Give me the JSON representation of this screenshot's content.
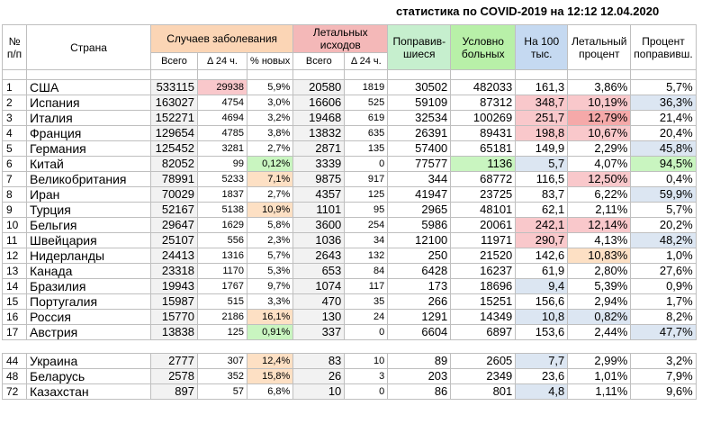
{
  "title": "статистика по COVID-2019 на 12:12 12.04.2020",
  "headers": {
    "no": "№ п/п",
    "country": "Страна",
    "cases": "Случаев заболевания",
    "deaths": "Летальных исходов",
    "recovered": "Поправив-шиеся",
    "active": "Условно больных",
    "per100k": "На 100 тыс.",
    "lethal_pct": "Летальный процент",
    "recovered_pct": "Процент поправивш.",
    "total": "Всего",
    "delta24": "Δ 24 ч.",
    "pct_new": "% новых",
    "total2": "Всего",
    "delta24_2": "Δ 24 ч."
  },
  "rows": [
    {
      "n": "1",
      "country": "США",
      "cases": "533115",
      "d24": "29938",
      "pnew": "5,9%",
      "deaths": "20580",
      "dd24": "1819",
      "rec": "30502",
      "act": "482033",
      "p100": "161,3",
      "lp": "3,86%",
      "rp": "5,7%"
    },
    {
      "n": "2",
      "country": "Испания",
      "cases": "163027",
      "d24": "4754",
      "pnew": "3,0%",
      "deaths": "16606",
      "dd24": "525",
      "rec": "59109",
      "act": "87312",
      "p100": "348,7",
      "lp": "10,19%",
      "rp": "36,3%"
    },
    {
      "n": "3",
      "country": "Италия",
      "cases": "152271",
      "d24": "4694",
      "pnew": "3,2%",
      "deaths": "19468",
      "dd24": "619",
      "rec": "32534",
      "act": "100269",
      "p100": "251,7",
      "lp": "12,79%",
      "rp": "21,4%"
    },
    {
      "n": "4",
      "country": "Франция",
      "cases": "129654",
      "d24": "4785",
      "pnew": "3,8%",
      "deaths": "13832",
      "dd24": "635",
      "rec": "26391",
      "act": "89431",
      "p100": "198,8",
      "lp": "10,67%",
      "rp": "20,4%"
    },
    {
      "n": "5",
      "country": "Германия",
      "cases": "125452",
      "d24": "3281",
      "pnew": "2,7%",
      "deaths": "2871",
      "dd24": "135",
      "rec": "57400",
      "act": "65181",
      "p100": "149,9",
      "lp": "2,29%",
      "rp": "45,8%"
    },
    {
      "n": "6",
      "country": "Китай",
      "cases": "82052",
      "d24": "99",
      "pnew": "0,12%",
      "deaths": "3339",
      "dd24": "0",
      "rec": "77577",
      "act": "1136",
      "p100": "5,7",
      "lp": "4,07%",
      "rp": "94,5%"
    },
    {
      "n": "7",
      "country": "Великобритания",
      "cases": "78991",
      "d24": "5233",
      "pnew": "7,1%",
      "deaths": "9875",
      "dd24": "917",
      "rec": "344",
      "act": "68772",
      "p100": "116,5",
      "lp": "12,50%",
      "rp": "0,4%"
    },
    {
      "n": "8",
      "country": "Иран",
      "cases": "70029",
      "d24": "1837",
      "pnew": "2,7%",
      "deaths": "4357",
      "dd24": "125",
      "rec": "41947",
      "act": "23725",
      "p100": "83,7",
      "lp": "6,22%",
      "rp": "59,9%"
    },
    {
      "n": "9",
      "country": "Турция",
      "cases": "52167",
      "d24": "5138",
      "pnew": "10,9%",
      "deaths": "1101",
      "dd24": "95",
      "rec": "2965",
      "act": "48101",
      "p100": "62,1",
      "lp": "2,11%",
      "rp": "5,7%"
    },
    {
      "n": "10",
      "country": "Бельгия",
      "cases": "29647",
      "d24": "1629",
      "pnew": "5,8%",
      "deaths": "3600",
      "dd24": "254",
      "rec": "5986",
      "act": "20061",
      "p100": "242,1",
      "lp": "12,14%",
      "rp": "20,2%"
    },
    {
      "n": "11",
      "country": "Швейцария",
      "cases": "25107",
      "d24": "556",
      "pnew": "2,3%",
      "deaths": "1036",
      "dd24": "34",
      "rec": "12100",
      "act": "11971",
      "p100": "290,7",
      "lp": "4,13%",
      "rp": "48,2%"
    },
    {
      "n": "12",
      "country": "Нидерланды",
      "cases": "24413",
      "d24": "1316",
      "pnew": "5,7%",
      "deaths": "2643",
      "dd24": "132",
      "rec": "250",
      "act": "21520",
      "p100": "142,6",
      "lp": "10,83%",
      "rp": "1,0%"
    },
    {
      "n": "13",
      "country": "Канада",
      "cases": "23318",
      "d24": "1170",
      "pnew": "5,3%",
      "deaths": "653",
      "dd24": "84",
      "rec": "6428",
      "act": "16237",
      "p100": "61,9",
      "lp": "2,80%",
      "rp": "27,6%"
    },
    {
      "n": "14",
      "country": "Бразилия",
      "cases": "19943",
      "d24": "1767",
      "pnew": "9,7%",
      "deaths": "1074",
      "dd24": "117",
      "rec": "173",
      "act": "18696",
      "p100": "9,4",
      "lp": "5,39%",
      "rp": "0,9%"
    },
    {
      "n": "15",
      "country": "Португалия",
      "cases": "15987",
      "d24": "515",
      "pnew": "3,3%",
      "deaths": "470",
      "dd24": "35",
      "rec": "266",
      "act": "15251",
      "p100": "156,6",
      "lp": "2,94%",
      "rp": "1,7%"
    },
    {
      "n": "16",
      "country": "Россия",
      "cases": "15770",
      "d24": "2186",
      "pnew": "16,1%",
      "deaths": "130",
      "dd24": "24",
      "rec": "1291",
      "act": "14349",
      "p100": "10,8",
      "lp": "0,82%",
      "rp": "8,2%"
    },
    {
      "n": "17",
      "country": "Австрия",
      "cases": "13838",
      "d24": "125",
      "pnew": "0,91%",
      "deaths": "337",
      "dd24": "0",
      "rec": "6604",
      "act": "6897",
      "p100": "153,6",
      "lp": "2,44%",
      "rp": "47,7%"
    }
  ],
  "extra_rows": [
    {
      "n": "44",
      "country": "Украина",
      "cases": "2777",
      "d24": "307",
      "pnew": "12,4%",
      "deaths": "83",
      "dd24": "10",
      "rec": "89",
      "act": "2605",
      "p100": "7,7",
      "lp": "2,99%",
      "rp": "3,2%"
    },
    {
      "n": "48",
      "country": "Беларусь",
      "cases": "2578",
      "d24": "352",
      "pnew": "15,8%",
      "deaths": "26",
      "dd24": "3",
      "rec": "203",
      "act": "2349",
      "p100": "23,6",
      "lp": "1,01%",
      "rp": "7,9%"
    },
    {
      "n": "72",
      "country": "Казахстан",
      "cases": "897",
      "d24": "57",
      "pnew": "6,8%",
      "deaths": "10",
      "dd24": "0",
      "rec": "86",
      "act": "801",
      "p100": "4,8",
      "lp": "1,11%",
      "rp": "9,6%"
    }
  ],
  "colors": {
    "cases_header": "#fbd5b5",
    "deaths_header": "#f4b8b8",
    "recovered_header": "#c6efce",
    "active_header": "#b8f0a8",
    "per100k_header": "#c5d9f1"
  }
}
